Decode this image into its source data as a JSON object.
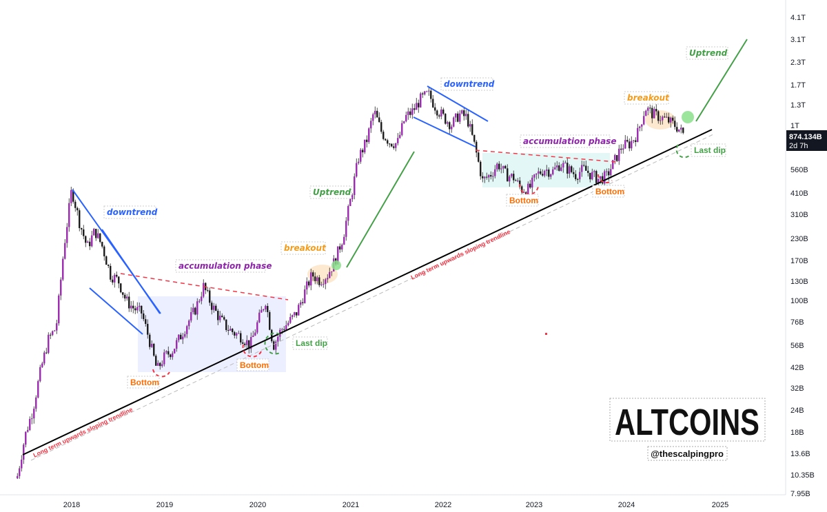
{
  "chart_data": {
    "type": "candlestick",
    "title": "ALTCOINS",
    "subtitle": "@thescalpingpro",
    "x_ticks": [
      "2018",
      "2019",
      "2020",
      "2021",
      "2022",
      "2023",
      "2024",
      "2025"
    ],
    "y_ticks": [
      "4.1T",
      "3.1T",
      "2.3T",
      "1.7T",
      "1.3T",
      "1T",
      "560B",
      "410B",
      "310B",
      "230B",
      "170B",
      "130B",
      "100B",
      "76B",
      "56B",
      "42B",
      "32B",
      "24B",
      "18B",
      "13.6B",
      "10.35B",
      "7.95B"
    ],
    "scale": "log",
    "price_tag": {
      "value": "874.134B",
      "countdown": "2d 7h",
      "color": "#131722"
    },
    "annotations": {
      "downtrend_1": "downtrend",
      "downtrend_2": "downtrend",
      "accum_1": "accumulation phase",
      "accum_2": "accumulation phase",
      "breakout_1": "breakout",
      "breakout_2": "breakout",
      "uptrend_1": "Uptrend",
      "uptrend_2": "Uptrend",
      "bottom_1": "Bottom",
      "bottom_2": "Bottom",
      "bottom_3": "Bottom",
      "bottom_4": "Bottom",
      "last_dip_1": "Last dip",
      "last_dip_2": "Last dip",
      "trendline_1": "Long term upwards sloping trendline",
      "trendline_2": "Long term upwards sloping trendline"
    },
    "price_path": [
      [
        "2017-06",
        10
      ],
      [
        "2017-07",
        17
      ],
      [
        "2017-08",
        24
      ],
      [
        "2017-09",
        40
      ],
      [
        "2017-10",
        60
      ],
      [
        "2017-11",
        70
      ],
      [
        "2017-12",
        200
      ],
      [
        "2018-01",
        430
      ],
      [
        "2018-02",
        280
      ],
      [
        "2018-03",
        200
      ],
      [
        "2018-04",
        250
      ],
      [
        "2018-05",
        200
      ],
      [
        "2018-06",
        140
      ],
      [
        "2018-07",
        130
      ],
      [
        "2018-08",
        100
      ],
      [
        "2018-09",
        90
      ],
      [
        "2018-10",
        85
      ],
      [
        "2018-11",
        60
      ],
      [
        "2018-12",
        40
      ],
      [
        "2019-01",
        48
      ],
      [
        "2019-02",
        52
      ],
      [
        "2019-03",
        62
      ],
      [
        "2019-04",
        75
      ],
      [
        "2019-05",
        90
      ],
      [
        "2019-06",
        120
      ],
      [
        "2019-07",
        95
      ],
      [
        "2019-08",
        80
      ],
      [
        "2019-09",
        70
      ],
      [
        "2019-10",
        65
      ],
      [
        "2019-11",
        62
      ],
      [
        "2019-12",
        55
      ],
      [
        "2020-01",
        75
      ],
      [
        "2020-02",
        100
      ],
      [
        "2020-03",
        55
      ],
      [
        "2020-04",
        68
      ],
      [
        "2020-05",
        75
      ],
      [
        "2020-06",
        85
      ],
      [
        "2020-07",
        110
      ],
      [
        "2020-08",
        140
      ],
      [
        "2020-09",
        130
      ],
      [
        "2020-10",
        140
      ],
      [
        "2020-11",
        170
      ],
      [
        "2020-12",
        230
      ],
      [
        "2021-01",
        380
      ],
      [
        "2021-02",
        650
      ],
      [
        "2021-03",
        800
      ],
      [
        "2021-04",
        1200
      ],
      [
        "2021-05",
        900
      ],
      [
        "2021-06",
        800
      ],
      [
        "2021-07",
        780
      ],
      [
        "2021-08",
        1100
      ],
      [
        "2021-09",
        1200
      ],
      [
        "2021-10",
        1400
      ],
      [
        "2021-11",
        1500
      ],
      [
        "2021-12",
        1250
      ],
      [
        "2022-01",
        1100
      ],
      [
        "2022-02",
        1000
      ],
      [
        "2022-03",
        1150
      ],
      [
        "2022-04",
        1100
      ],
      [
        "2022-05",
        750
      ],
      [
        "2022-06",
        480
      ],
      [
        "2022-07",
        520
      ],
      [
        "2022-08",
        600
      ],
      [
        "2022-09",
        520
      ],
      [
        "2022-10",
        500
      ],
      [
        "2022-11",
        430
      ],
      [
        "2022-12",
        430
      ],
      [
        "2023-01",
        520
      ],
      [
        "2023-02",
        560
      ],
      [
        "2023-03",
        540
      ],
      [
        "2023-04",
        600
      ],
      [
        "2023-05",
        560
      ],
      [
        "2023-06",
        520
      ],
      [
        "2023-07",
        560
      ],
      [
        "2023-08",
        520
      ],
      [
        "2023-09",
        490
      ],
      [
        "2023-10",
        510
      ],
      [
        "2023-11",
        620
      ],
      [
        "2023-12",
        760
      ],
      [
        "2024-01",
        780
      ],
      [
        "2024-02",
        900
      ],
      [
        "2024-03",
        1250
      ],
      [
        "2024-04",
        1150
      ],
      [
        "2024-05",
        1100
      ],
      [
        "2024-06",
        1050
      ],
      [
        "2024-07",
        980
      ],
      [
        "2024-08",
        874
      ]
    ]
  }
}
